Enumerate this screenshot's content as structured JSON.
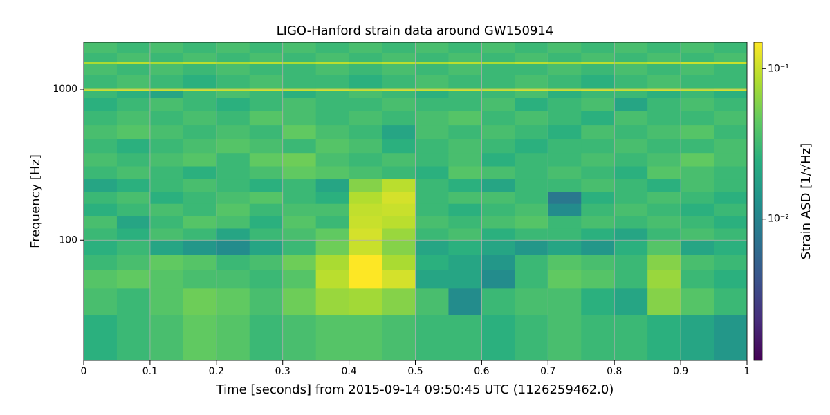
{
  "chart_data": {
    "type": "heatmap",
    "title": "LIGO-Hanford strain data around GW150914",
    "xlabel": "Time [seconds] from 2015-09-14 09:50:45 UTC (1126259462.0)",
    "ylabel": "Frequency [Hz]",
    "xlim": [
      0,
      1
    ],
    "xticks": [
      0,
      0.1,
      0.2,
      0.3,
      0.4,
      0.5,
      0.6,
      0.7,
      0.8,
      0.9,
      1
    ],
    "ylim": [
      16,
      2048
    ],
    "yticks": [
      100,
      1000
    ],
    "ylog": true,
    "grid": true,
    "xbins": [
      0,
      0.05,
      0.1,
      0.15,
      0.2,
      0.25,
      0.3,
      0.35,
      0.4,
      0.45,
      0.5,
      0.55,
      0.6,
      0.65,
      0.7,
      0.75,
      0.8,
      0.85,
      0.9,
      0.95,
      1
    ],
    "ybins": [
      16,
      32,
      48,
      64,
      80,
      100,
      120,
      145,
      175,
      210,
      255,
      310,
      380,
      470,
      580,
      720,
      880,
      980,
      1020,
      1250,
      1480,
      1520,
      1750,
      2048
    ],
    "z": [
      [
        0.025,
        0.03,
        0.035,
        0.045,
        0.04,
        0.03,
        0.035,
        0.04,
        0.04,
        0.035,
        0.03,
        0.03,
        0.025,
        0.03,
        0.035,
        0.03,
        0.03,
        0.025,
        0.02,
        0.015
      ],
      [
        0.035,
        0.03,
        0.04,
        0.05,
        0.045,
        0.035,
        0.05,
        0.07,
        0.075,
        0.06,
        0.035,
        0.012,
        0.03,
        0.035,
        0.035,
        0.025,
        0.02,
        0.06,
        0.04,
        0.03
      ],
      [
        0.04,
        0.045,
        0.04,
        0.035,
        0.035,
        0.03,
        0.04,
        0.09,
        0.15,
        0.11,
        0.02,
        0.02,
        0.012,
        0.03,
        0.045,
        0.04,
        0.03,
        0.07,
        0.03,
        0.025
      ],
      [
        0.03,
        0.035,
        0.045,
        0.04,
        0.03,
        0.035,
        0.05,
        0.08,
        0.15,
        0.08,
        0.025,
        0.02,
        0.015,
        0.03,
        0.04,
        0.035,
        0.03,
        0.06,
        0.035,
        0.03
      ],
      [
        0.025,
        0.03,
        0.02,
        0.015,
        0.012,
        0.02,
        0.03,
        0.05,
        0.1,
        0.06,
        0.02,
        0.025,
        0.02,
        0.015,
        0.02,
        0.015,
        0.025,
        0.04,
        0.02,
        0.025
      ],
      [
        0.03,
        0.025,
        0.035,
        0.03,
        0.02,
        0.03,
        0.035,
        0.045,
        0.11,
        0.07,
        0.03,
        0.035,
        0.025,
        0.03,
        0.03,
        0.025,
        0.02,
        0.03,
        0.035,
        0.03
      ],
      [
        0.035,
        0.02,
        0.03,
        0.04,
        0.035,
        0.025,
        0.04,
        0.03,
        0.1,
        0.09,
        0.035,
        0.03,
        0.035,
        0.04,
        0.03,
        0.035,
        0.03,
        0.035,
        0.03,
        0.025
      ],
      [
        0.025,
        0.03,
        0.035,
        0.03,
        0.04,
        0.03,
        0.035,
        0.035,
        0.095,
        0.1,
        0.03,
        0.025,
        0.03,
        0.035,
        0.012,
        0.03,
        0.035,
        0.03,
        0.025,
        0.03
      ],
      [
        0.03,
        0.035,
        0.025,
        0.03,
        0.035,
        0.04,
        0.03,
        0.025,
        0.085,
        0.11,
        0.03,
        0.035,
        0.035,
        0.03,
        0.008,
        0.025,
        0.03,
        0.035,
        0.03,
        0.025
      ],
      [
        0.02,
        0.025,
        0.03,
        0.035,
        0.03,
        0.025,
        0.03,
        0.02,
        0.06,
        0.09,
        0.03,
        0.025,
        0.02,
        0.03,
        0.03,
        0.035,
        0.03,
        0.025,
        0.035,
        0.03
      ],
      [
        0.03,
        0.035,
        0.03,
        0.025,
        0.03,
        0.035,
        0.045,
        0.04,
        0.035,
        0.03,
        0.025,
        0.04,
        0.035,
        0.03,
        0.035,
        0.03,
        0.025,
        0.04,
        0.035,
        0.03
      ],
      [
        0.035,
        0.03,
        0.035,
        0.04,
        0.03,
        0.045,
        0.05,
        0.035,
        0.03,
        0.035,
        0.03,
        0.035,
        0.025,
        0.03,
        0.03,
        0.035,
        0.03,
        0.035,
        0.045,
        0.035
      ],
      [
        0.03,
        0.025,
        0.03,
        0.035,
        0.04,
        0.035,
        0.03,
        0.04,
        0.035,
        0.025,
        0.03,
        0.035,
        0.03,
        0.025,
        0.03,
        0.03,
        0.035,
        0.03,
        0.03,
        0.035
      ],
      [
        0.035,
        0.04,
        0.035,
        0.03,
        0.035,
        0.03,
        0.045,
        0.035,
        0.03,
        0.02,
        0.035,
        0.03,
        0.035,
        0.03,
        0.025,
        0.035,
        0.03,
        0.035,
        0.04,
        0.03
      ],
      [
        0.03,
        0.035,
        0.03,
        0.035,
        0.03,
        0.04,
        0.035,
        0.03,
        0.035,
        0.03,
        0.035,
        0.04,
        0.03,
        0.035,
        0.03,
        0.025,
        0.035,
        0.03,
        0.03,
        0.035
      ],
      [
        0.025,
        0.03,
        0.035,
        0.03,
        0.025,
        0.03,
        0.035,
        0.03,
        0.03,
        0.035,
        0.03,
        0.03,
        0.035,
        0.025,
        0.03,
        0.035,
        0.02,
        0.03,
        0.035,
        0.03
      ],
      [
        0.03,
        0.025,
        0.02,
        0.03,
        0.035,
        0.03,
        0.025,
        0.03,
        0.035,
        0.03,
        0.025,
        0.03,
        0.03,
        0.035,
        0.025,
        0.03,
        0.03,
        0.025,
        0.03,
        0.025
      ],
      [
        0.1,
        0.11,
        0.1,
        0.11,
        0.1,
        0.11,
        0.1,
        0.11,
        0.1,
        0.11,
        0.1,
        0.11,
        0.1,
        0.11,
        0.1,
        0.11,
        0.1,
        0.11,
        0.1,
        0.11
      ],
      [
        0.03,
        0.035,
        0.03,
        0.025,
        0.03,
        0.035,
        0.03,
        0.03,
        0.025,
        0.03,
        0.035,
        0.03,
        0.03,
        0.035,
        0.03,
        0.025,
        0.03,
        0.035,
        0.03,
        0.03
      ],
      [
        0.035,
        0.03,
        0.035,
        0.03,
        0.035,
        0.03,
        0.03,
        0.035,
        0.03,
        0.035,
        0.03,
        0.035,
        0.03,
        0.03,
        0.035,
        0.03,
        0.035,
        0.03,
        0.035,
        0.03
      ],
      [
        0.08,
        0.09,
        0.08,
        0.09,
        0.08,
        0.09,
        0.08,
        0.09,
        0.08,
        0.09,
        0.08,
        0.09,
        0.08,
        0.09,
        0.08,
        0.09,
        0.08,
        0.09,
        0.1,
        0.1
      ],
      [
        0.03,
        0.035,
        0.03,
        0.035,
        0.03,
        0.035,
        0.03,
        0.035,
        0.03,
        0.035,
        0.03,
        0.035,
        0.03,
        0.035,
        0.03,
        0.035,
        0.03,
        0.035,
        0.03,
        0.035
      ],
      [
        0.035,
        0.03,
        0.035,
        0.03,
        0.035,
        0.03,
        0.035,
        0.03,
        0.035,
        0.03,
        0.035,
        0.03,
        0.035,
        0.03,
        0.035,
        0.03,
        0.035,
        0.03,
        0.035,
        0.03
      ]
    ],
    "colorbar": {
      "label": "Strain ASD [1/√Hz]",
      "lim": [
        0.00115,
        0.15
      ],
      "log": true,
      "ticks": [
        {
          "value": 0.1,
          "label": "10⁻¹"
        },
        {
          "value": 0.01,
          "label": "10⁻²"
        }
      ],
      "colormap": [
        "#440154",
        "#472d7b",
        "#3b528b",
        "#2c728e",
        "#21918c",
        "#28ae80",
        "#5ec962",
        "#addc30",
        "#fde725"
      ]
    }
  }
}
